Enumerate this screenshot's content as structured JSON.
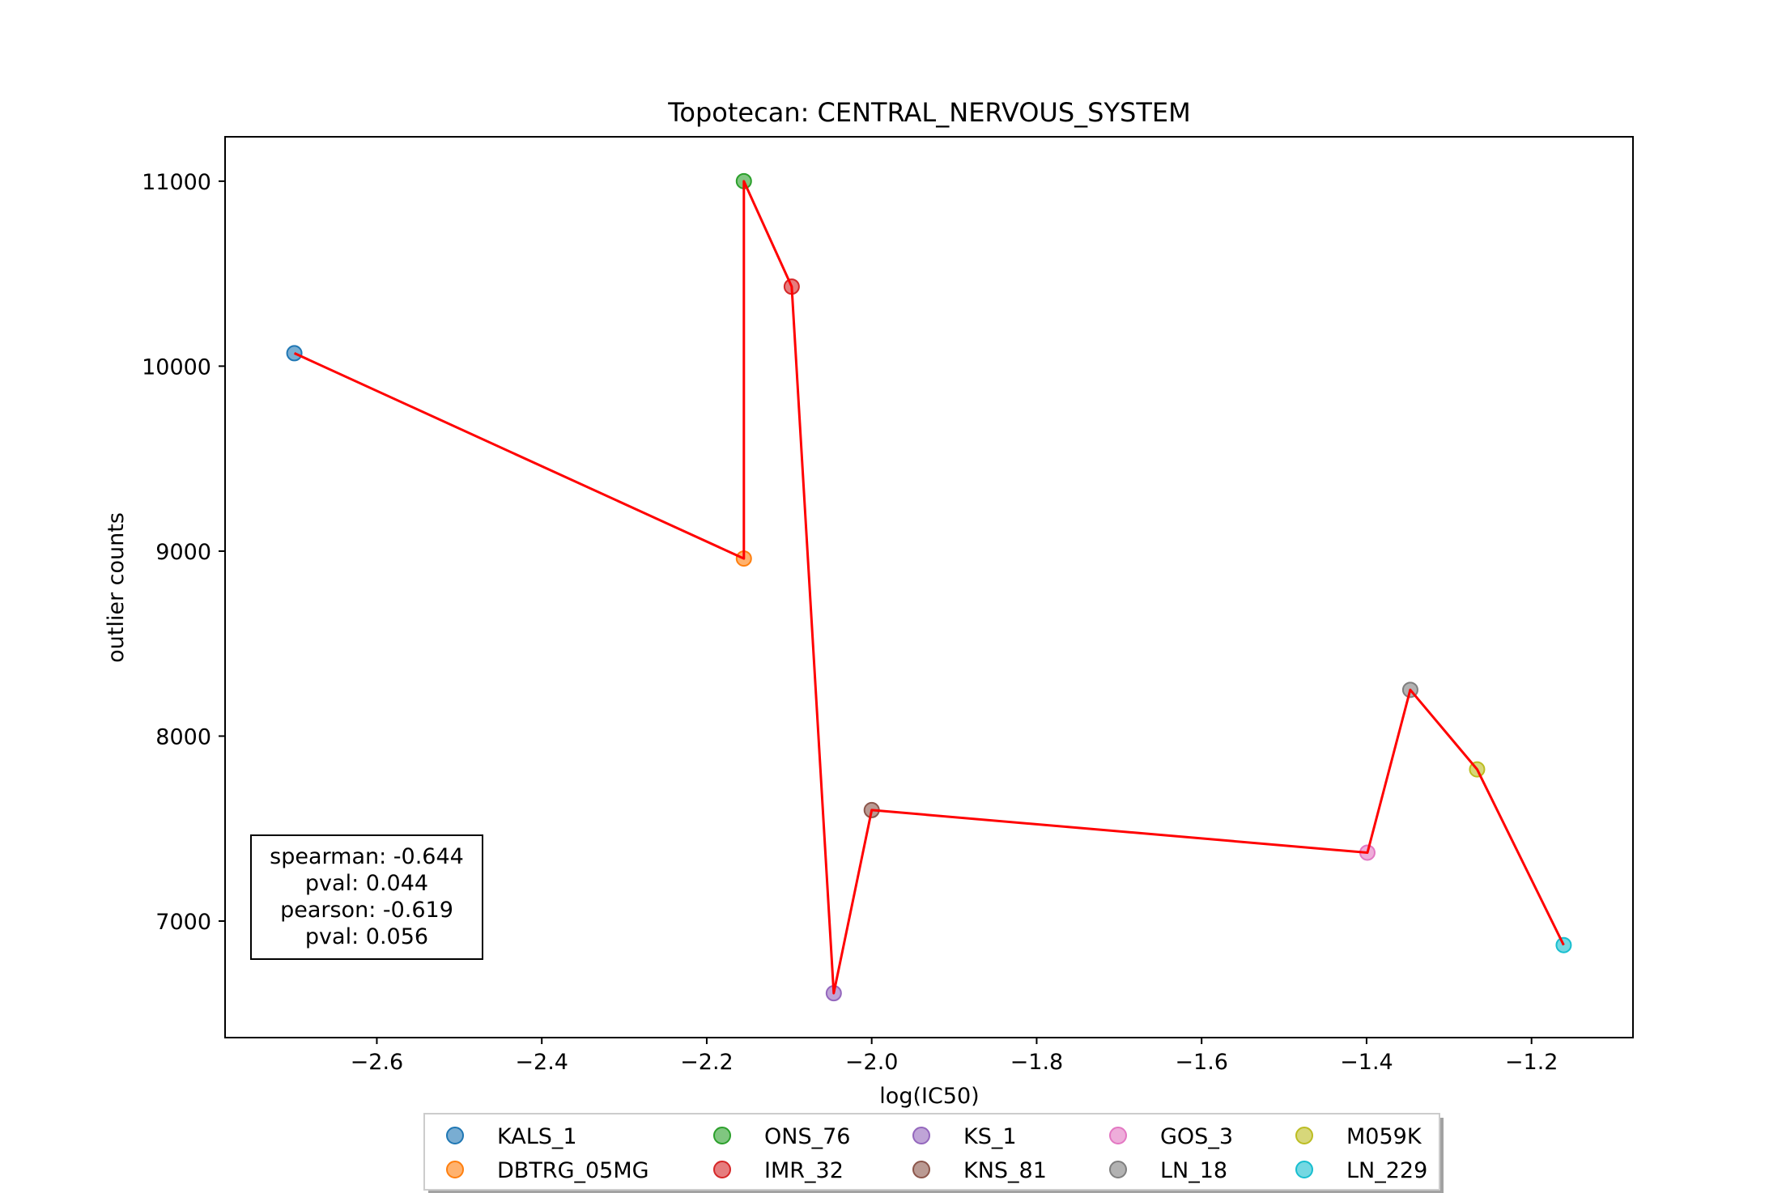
{
  "chart_data": {
    "type": "scatter",
    "title": "Topotecan: CENTRAL_NERVOUS_SYSTEM",
    "xlabel": "log(IC50)",
    "ylabel": "outlier counts",
    "xlim": [
      -2.784,
      -1.077
    ],
    "ylim": [
      6370,
      11240
    ],
    "xticks": [
      -2.6,
      -2.4,
      -2.2,
      -2.0,
      -1.8,
      -1.6,
      -1.4,
      -1.2
    ],
    "xtick_labels": [
      "−2.6",
      "−2.4",
      "−2.2",
      "−2.0",
      "−1.8",
      "−1.6",
      "−1.4",
      "−1.2"
    ],
    "yticks": [
      7000,
      8000,
      9000,
      10000,
      11000
    ],
    "ytick_labels": [
      "7000",
      "8000",
      "9000",
      "10000",
      "11000"
    ],
    "grid": false,
    "points": [
      {
        "name": "KALS_1",
        "x": -2.7,
        "y": 10070,
        "color": "#1f77b4"
      },
      {
        "name": "DBTRG_05MG",
        "x": -2.155,
        "y": 8960,
        "color": "#ff7f0e"
      },
      {
        "name": "ONS_76",
        "x": -2.155,
        "y": 11000,
        "color": "#2ca02c"
      },
      {
        "name": "IMR_32",
        "x": -2.097,
        "y": 10430,
        "color": "#d62728"
      },
      {
        "name": "KS_1",
        "x": -2.046,
        "y": 6610,
        "color": "#9467bd"
      },
      {
        "name": "KNS_81",
        "x": -2.0,
        "y": 7600,
        "color": "#8c564b"
      },
      {
        "name": "GOS_3",
        "x": -1.399,
        "y": 7370,
        "color": "#e377c2"
      },
      {
        "name": "LN_18",
        "x": -1.347,
        "y": 8250,
        "color": "#7f7f7f"
      },
      {
        "name": "M059K",
        "x": -1.266,
        "y": 7820,
        "color": "#bcbd22"
      },
      {
        "name": "LN_229",
        "x": -1.161,
        "y": 6870,
        "color": "#17becf"
      }
    ],
    "line_color": "#ff0000",
    "stats": {
      "spearman": "spearman: -0.644",
      "spearman_pval": "pval: 0.044",
      "pearson": "pearson: -0.619",
      "pearson_pval": "pval: 0.056"
    },
    "legend": {
      "placement": "bottom-center, below axes",
      "columns": 5,
      "entries": [
        "KALS_1",
        "DBTRG_05MG",
        "ONS_76",
        "IMR_32",
        "KS_1",
        "KNS_81",
        "GOS_3",
        "LN_18",
        "M059K",
        "LN_229"
      ]
    }
  }
}
